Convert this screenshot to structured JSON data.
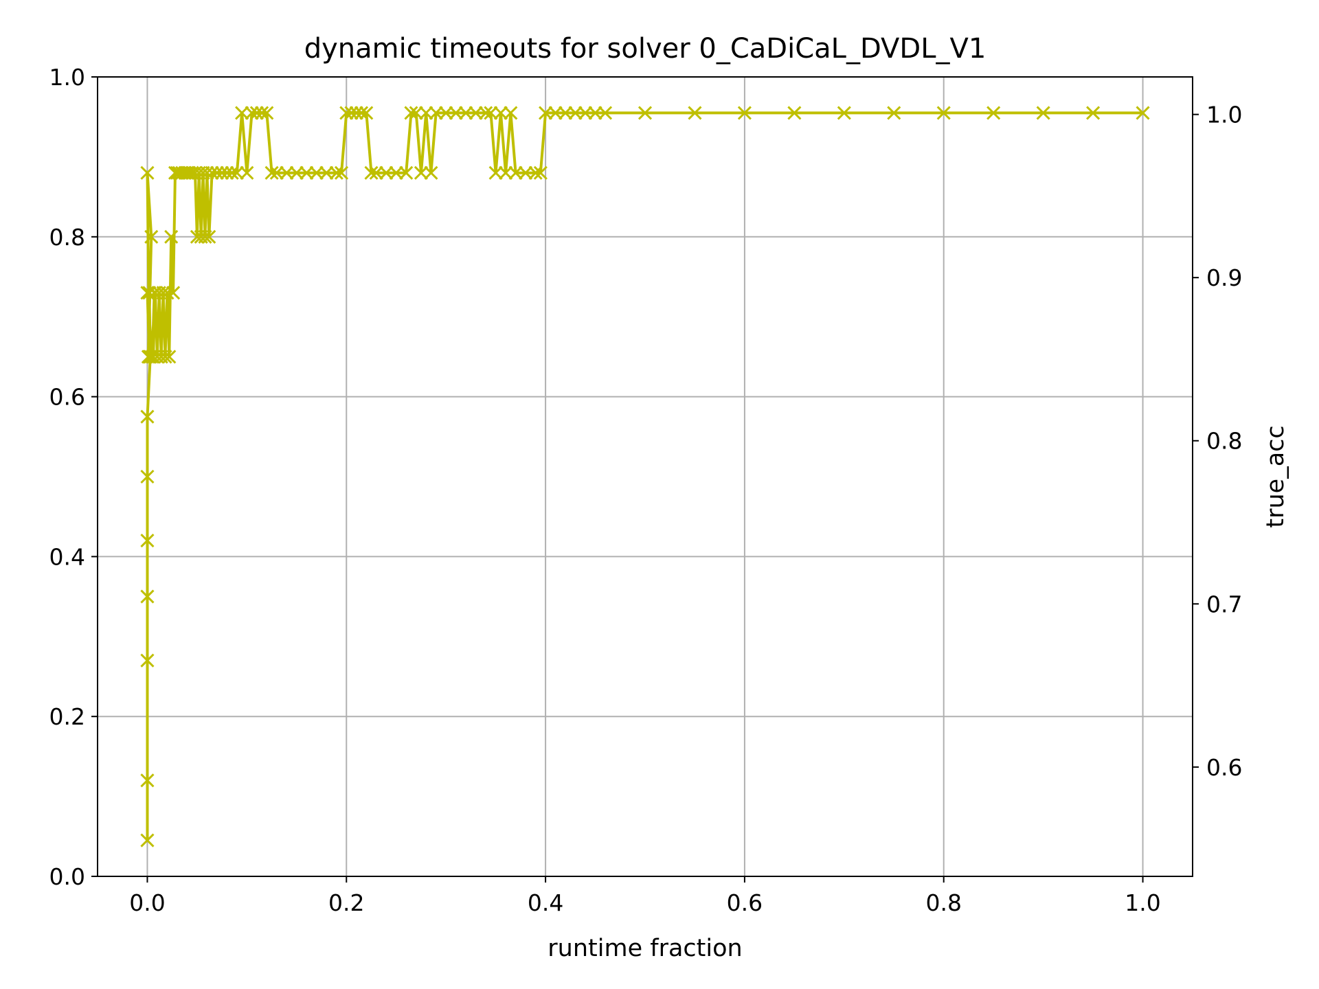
{
  "chart_data": {
    "type": "line",
    "title": "dynamic timeouts for solver 0_CaDiCaL_DVDL_V1",
    "xlabel": "runtime fraction",
    "ylabel": "",
    "ylabel_right": "true_acc",
    "ylabel_right_color": "#ff0000",
    "series_color": "#bfbf00",
    "marker": "x",
    "grid": true,
    "xlim": [
      -0.05,
      1.05
    ],
    "ylim": [
      0.0,
      1.0
    ],
    "ylim_right": [
      0.533,
      1.023
    ],
    "xticks": [
      0.0,
      0.2,
      0.4,
      0.6,
      0.8,
      1.0
    ],
    "xtick_labels": [
      "0.0",
      "0.2",
      "0.4",
      "0.6",
      "0.8",
      "1.0"
    ],
    "yticks": [
      0.0,
      0.2,
      0.4,
      0.6,
      0.8,
      1.0
    ],
    "ytick_labels": [
      "0.0",
      "0.2",
      "0.4",
      "0.6",
      "0.8",
      "1.0"
    ],
    "yticks_right": [
      0.6,
      0.7,
      0.8,
      0.9,
      1.0
    ],
    "ytick_labels_right": [
      "0.6",
      "0.7",
      "0.8",
      "0.9",
      "1.0"
    ],
    "series": [
      {
        "x": [
          0.0,
          0.0,
          0.0,
          0.0,
          0.0,
          0.0,
          0.0,
          0.003,
          0.002,
          0.001,
          0.004,
          0.0,
          0.002,
          0.0,
          0.005,
          0.007,
          0.006,
          0.008,
          0.01,
          0.012,
          0.014,
          0.016,
          0.018,
          0.02,
          0.022,
          0.024,
          0.026,
          0.028,
          0.03,
          0.032,
          0.035,
          0.038,
          0.04,
          0.042,
          0.045,
          0.048,
          0.05,
          0.052,
          0.054,
          0.056,
          0.058,
          0.06,
          0.062,
          0.065,
          0.07,
          0.075,
          0.08,
          0.085,
          0.09,
          0.095,
          0.1,
          0.105,
          0.11,
          0.115,
          0.12,
          0.125,
          0.13,
          0.14,
          0.15,
          0.16,
          0.17,
          0.18,
          0.19,
          0.195,
          0.2,
          0.205,
          0.21,
          0.215,
          0.22,
          0.225,
          0.23,
          0.24,
          0.25,
          0.26,
          0.265,
          0.27,
          0.275,
          0.28,
          0.285,
          0.29,
          0.3,
          0.31,
          0.32,
          0.33,
          0.34,
          0.345,
          0.35,
          0.355,
          0.36,
          0.365,
          0.37,
          0.38,
          0.39,
          0.395,
          0.4,
          0.41,
          0.42,
          0.43,
          0.44,
          0.45,
          0.46,
          0.5,
          0.55,
          0.6,
          0.65,
          0.7,
          0.75,
          0.8,
          0.85,
          0.9,
          0.95,
          1.0
        ],
        "y": [
          0.045,
          0.12,
          0.27,
          0.35,
          0.42,
          0.5,
          0.575,
          0.65,
          0.73,
          0.65,
          0.8,
          0.88,
          0.65,
          0.73,
          0.65,
          0.73,
          0.65,
          0.73,
          0.65,
          0.73,
          0.65,
          0.73,
          0.65,
          0.73,
          0.65,
          0.8,
          0.73,
          0.88,
          0.88,
          0.88,
          0.88,
          0.88,
          0.88,
          0.88,
          0.88,
          0.88,
          0.8,
          0.88,
          0.8,
          0.88,
          0.8,
          0.88,
          0.8,
          0.88,
          0.88,
          0.88,
          0.88,
          0.88,
          0.88,
          0.955,
          0.88,
          0.955,
          0.955,
          0.955,
          0.955,
          0.88,
          0.88,
          0.88,
          0.88,
          0.88,
          0.88,
          0.88,
          0.88,
          0.88,
          0.955,
          0.955,
          0.955,
          0.955,
          0.955,
          0.88,
          0.88,
          0.88,
          0.88,
          0.88,
          0.955,
          0.955,
          0.88,
          0.955,
          0.88,
          0.955,
          0.955,
          0.955,
          0.955,
          0.955,
          0.955,
          0.955,
          0.88,
          0.955,
          0.88,
          0.955,
          0.88,
          0.88,
          0.88,
          0.88,
          0.955,
          0.955,
          0.955,
          0.955,
          0.955,
          0.955,
          0.955,
          0.955,
          0.955,
          0.955,
          0.955,
          0.955,
          0.955,
          0.955,
          0.955,
          0.955,
          0.955,
          0.955
        ]
      }
    ]
  }
}
